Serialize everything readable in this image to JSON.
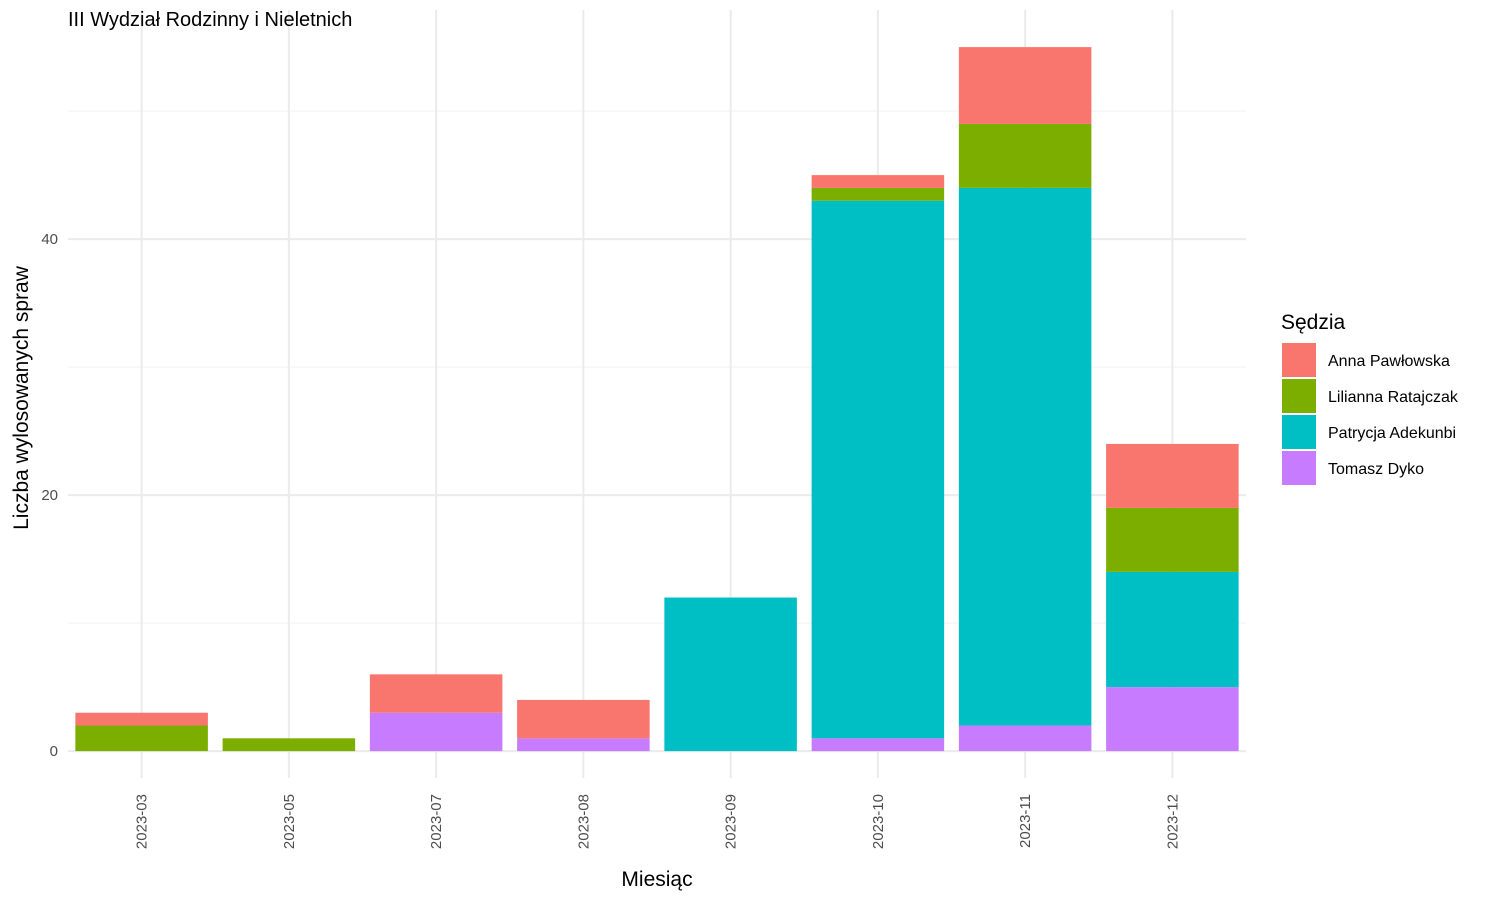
{
  "chart_data": {
    "type": "bar",
    "stacked": true,
    "title": "III Wydział Rodzinny i Nieletnich",
    "xlabel": "Miesiąc",
    "ylabel": "Liczba wylosowanych spraw",
    "categories": [
      "2023-03",
      "2023-05",
      "2023-07",
      "2023-08",
      "2023-09",
      "2023-10",
      "2023-11",
      "2023-12"
    ],
    "series": [
      {
        "name": "Tomasz Dyko",
        "color": "#C77CFF",
        "values": [
          0,
          0,
          3,
          1,
          0,
          1,
          2,
          5
        ]
      },
      {
        "name": "Patrycja Adekunbi",
        "color": "#00BFC4",
        "values": [
          0,
          0,
          0,
          0,
          12,
          42,
          42,
          9
        ]
      },
      {
        "name": "Lilianna Ratajczak",
        "color": "#7CAE00",
        "values": [
          2,
          1,
          0,
          0,
          0,
          1,
          5,
          5
        ]
      },
      {
        "name": "Anna Pawłowska",
        "color": "#F8766D",
        "values": [
          1,
          0,
          3,
          3,
          0,
          1,
          6,
          5
        ]
      }
    ],
    "legend_order": [
      "Anna Pawłowska",
      "Lilianna Ratajczak",
      "Patrycja Adekunbi",
      "Tomasz Dyko"
    ],
    "legend_title": "Sędzia",
    "legend_position": "right",
    "ylim": [
      -2.1,
      57.9
    ],
    "yticks": [
      0,
      20,
      40
    ],
    "grid": true
  }
}
